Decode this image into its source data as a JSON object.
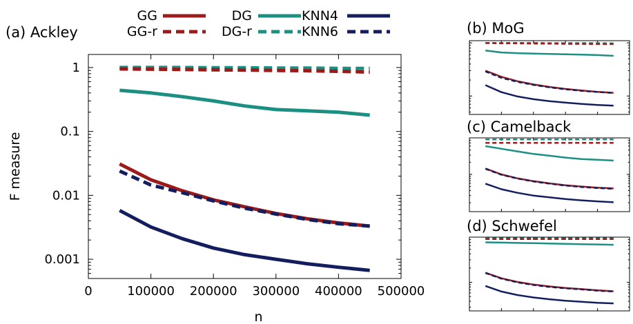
{
  "legend": [
    {
      "name": "GG",
      "color": "#9b1b1b",
      "dash": false
    },
    {
      "name": "DG",
      "color": "#1b8f82",
      "dash": false
    },
    {
      "name": "KNN4",
      "color": "#141e5e",
      "dash": false
    },
    {
      "name": "GG-r",
      "color": "#9b1b1b",
      "dash": true
    },
    {
      "name": "DG-r",
      "color": "#1b8f82",
      "dash": true
    },
    {
      "name": "KNN6",
      "color": "#141e5e",
      "dash": true
    }
  ],
  "chart_data": [
    {
      "type": "line",
      "title": "(a) Ackley",
      "xlabel": "n",
      "ylabel": "F measure",
      "xlim": [
        0,
        500000
      ],
      "ylim": [
        0.0005,
        1.6
      ],
      "yscale": "log",
      "xticks": [
        0,
        100000,
        200000,
        300000,
        400000,
        500000
      ],
      "xtick_labels": [
        "0",
        "100000",
        "200000",
        "300000",
        "400000",
        "500000"
      ],
      "yticks": [
        0.001,
        0.01,
        0.1,
        1
      ],
      "ytick_labels": [
        "0.001",
        "0.01",
        "0.1",
        "1"
      ],
      "x": [
        50000,
        100000,
        150000,
        200000,
        250000,
        300000,
        350000,
        400000,
        450000
      ],
      "series": [
        {
          "name": "GG",
          "values": [
            0.031,
            0.0175,
            0.0118,
            0.0085,
            0.0066,
            0.0052,
            0.0043,
            0.0037,
            0.0033
          ]
        },
        {
          "name": "GG-r",
          "values": [
            0.95,
            0.94,
            0.93,
            0.92,
            0.91,
            0.9,
            0.89,
            0.87,
            0.85
          ]
        },
        {
          "name": "DG",
          "values": [
            0.44,
            0.4,
            0.35,
            0.3,
            0.25,
            0.22,
            0.21,
            0.2,
            0.18
          ]
        },
        {
          "name": "DG-r",
          "values": [
            1.0,
            1.0,
            1.0,
            0.99,
            0.99,
            0.98,
            0.98,
            0.97,
            0.97
          ]
        },
        {
          "name": "KNN4",
          "values": [
            0.0058,
            0.0032,
            0.0021,
            0.0015,
            0.00118,
            0.001,
            0.00085,
            0.00075,
            0.00067
          ]
        },
        {
          "name": "KNN6",
          "values": [
            0.024,
            0.0145,
            0.011,
            0.0082,
            0.0063,
            0.0051,
            0.0042,
            0.0036,
            0.0033
          ]
        }
      ]
    },
    {
      "type": "line",
      "title": "(b) MoG",
      "yscale": "log",
      "x": [
        50000,
        100000,
        150000,
        200000,
        250000,
        300000,
        350000,
        400000,
        450000
      ],
      "series": [
        {
          "name": "GG",
          "values": [
            0.3,
            0.23,
            0.19,
            0.165,
            0.148,
            0.136,
            0.127,
            0.12,
            0.115
          ]
        },
        {
          "name": "GG-r",
          "values": [
            0.99,
            0.98,
            0.98,
            0.97,
            0.97,
            0.96,
            0.96,
            0.95,
            0.95
          ]
        },
        {
          "name": "DG",
          "values": [
            0.72,
            0.66,
            0.64,
            0.63,
            0.62,
            0.61,
            0.6,
            0.59,
            0.57
          ]
        },
        {
          "name": "DG-r",
          "values": [
            1.0,
            1.0,
            1.0,
            1.0,
            0.99,
            0.99,
            0.99,
            0.99,
            0.98
          ]
        },
        {
          "name": "KNN4",
          "values": [
            0.16,
            0.118,
            0.098,
            0.087,
            0.08,
            0.075,
            0.071,
            0.068,
            0.066
          ]
        },
        {
          "name": "KNN6",
          "values": [
            0.29,
            0.22,
            0.185,
            0.162,
            0.146,
            0.134,
            0.125,
            0.119,
            0.114
          ]
        }
      ]
    },
    {
      "type": "line",
      "title": "(c) Camelback",
      "yscale": "log",
      "x": [
        50000,
        100000,
        150000,
        200000,
        250000,
        300000,
        350000,
        400000,
        450000
      ],
      "series": [
        {
          "name": "GG",
          "values": [
            0.14,
            0.1,
            0.08,
            0.068,
            0.06,
            0.054,
            0.05,
            0.047,
            0.045
          ]
        },
        {
          "name": "GG-r",
          "values": [
            0.6,
            0.6,
            0.6,
            0.6,
            0.6,
            0.6,
            0.6,
            0.6,
            0.6
          ]
        },
        {
          "name": "DG",
          "values": [
            0.5,
            0.43,
            0.37,
            0.32,
            0.29,
            0.26,
            0.24,
            0.23,
            0.22
          ]
        },
        {
          "name": "DG-r",
          "values": [
            0.73,
            0.73,
            0.73,
            0.73,
            0.73,
            0.73,
            0.73,
            0.73,
            0.73
          ]
        },
        {
          "name": "KNN4",
          "values": [
            0.059,
            0.043,
            0.035,
            0.03,
            0.027,
            0.0245,
            0.0228,
            0.0215,
            0.0205
          ]
        },
        {
          "name": "KNN6",
          "values": [
            0.138,
            0.098,
            0.079,
            0.067,
            0.059,
            0.053,
            0.049,
            0.046,
            0.044
          ]
        }
      ]
    },
    {
      "type": "line",
      "title": "(d) Schwefel",
      "yscale": "log",
      "x": [
        50000,
        100000,
        150000,
        200000,
        250000,
        300000,
        350000,
        400000,
        450000
      ],
      "series": [
        {
          "name": "GG",
          "values": [
            0.16,
            0.122,
            0.102,
            0.09,
            0.082,
            0.076,
            0.072,
            0.068,
            0.065
          ]
        },
        {
          "name": "GG-r",
          "values": [
            0.82,
            0.82,
            0.82,
            0.82,
            0.82,
            0.82,
            0.82,
            0.82,
            0.82
          ]
        },
        {
          "name": "DG",
          "values": [
            0.7,
            0.69,
            0.68,
            0.67,
            0.66,
            0.65,
            0.64,
            0.63,
            0.62
          ]
        },
        {
          "name": "DG-r",
          "values": [
            0.85,
            0.85,
            0.85,
            0.85,
            0.85,
            0.85,
            0.85,
            0.85,
            0.85
          ]
        },
        {
          "name": "KNN4",
          "values": [
            0.084,
            0.064,
            0.054,
            0.048,
            0.044,
            0.041,
            0.039,
            0.037,
            0.036
          ]
        },
        {
          "name": "KNN6",
          "values": [
            0.158,
            0.12,
            0.1,
            0.088,
            0.08,
            0.075,
            0.071,
            0.067,
            0.064
          ]
        }
      ]
    }
  ]
}
